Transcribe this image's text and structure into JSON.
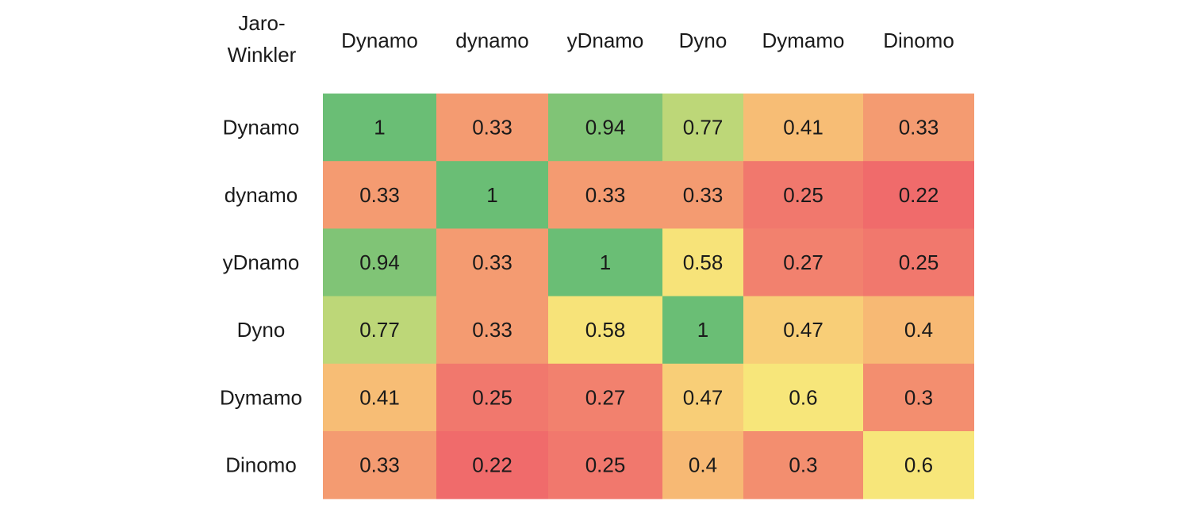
{
  "chart_data": {
    "type": "heatmap",
    "corner_label": [
      "Jaro-",
      "Winkler"
    ],
    "columns": [
      "Dynamo",
      "dynamo",
      "yDnamo",
      "Dyno",
      "Dymamo",
      "Dinomo"
    ],
    "rows": [
      "Dynamo",
      "dynamo",
      "yDnamo",
      "Dyno",
      "Dymamo",
      "Dinomo"
    ],
    "values": [
      [
        1,
        0.33,
        0.94,
        0.77,
        0.41,
        0.33
      ],
      [
        0.33,
        1,
        0.33,
        0.33,
        0.25,
        0.22
      ],
      [
        0.94,
        0.33,
        1,
        0.58,
        0.27,
        0.25
      ],
      [
        0.77,
        0.33,
        0.58,
        1,
        0.47,
        0.4
      ],
      [
        0.41,
        0.25,
        0.27,
        0.47,
        0.6,
        0.3
      ],
      [
        0.33,
        0.22,
        0.25,
        0.4,
        0.3,
        0.6
      ]
    ],
    "color_scale": {
      "low": "#f06b6b",
      "mid": "#f7e87a",
      "high": "#6abe75"
    }
  }
}
